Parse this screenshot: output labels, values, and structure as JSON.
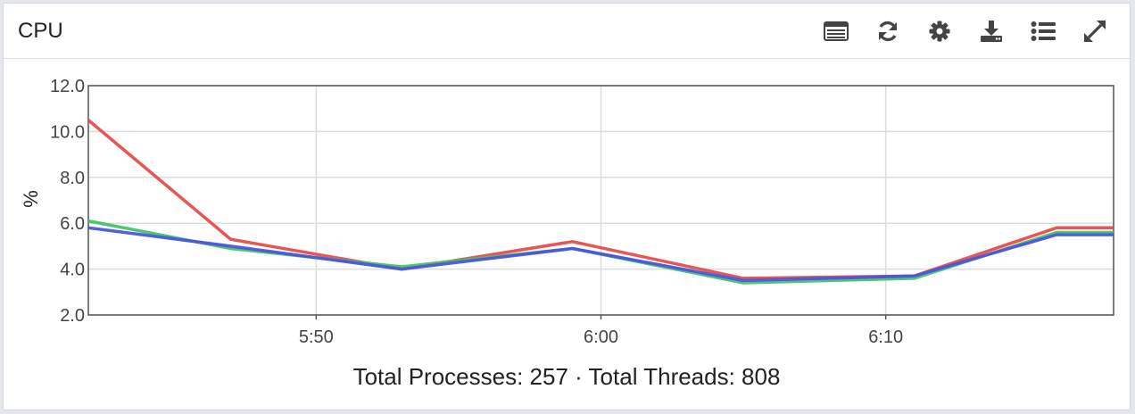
{
  "panel": {
    "title": "CPU",
    "toolbar": [
      {
        "icon": "table-icon",
        "name": "table-view-button"
      },
      {
        "icon": "refresh-icon",
        "name": "refresh-button"
      },
      {
        "icon": "gear-icon",
        "name": "settings-button"
      },
      {
        "icon": "download-icon",
        "name": "download-button"
      },
      {
        "icon": "list-icon",
        "name": "legend-button"
      },
      {
        "icon": "expand-icon",
        "name": "expand-button"
      }
    ],
    "summary": "Total Processes: 257 · Total Threads: 808"
  },
  "colors": {
    "icon": "#444444",
    "grid": "#dddddd",
    "frame": "#555555"
  },
  "chart_data": {
    "type": "line",
    "ylabel": "%",
    "xlabel": "",
    "ylim": [
      2.0,
      12.0
    ],
    "yticks": [
      "2.0",
      "4.0",
      "6.0",
      "8.0",
      "10.0",
      "12.0"
    ],
    "xlim": [
      "5:42",
      "6:18"
    ],
    "xticks": [
      {
        "label": "5:50",
        "t": "5:50"
      },
      {
        "label": "6:00",
        "t": "6:00"
      },
      {
        "label": "6:10",
        "t": "6:10"
      }
    ],
    "grid": true,
    "x": [
      "5:42",
      "5:47",
      "5:53",
      "5:59",
      "6:05",
      "6:11",
      "6:16",
      "6:18"
    ],
    "series": [
      {
        "color": "#e84c4a",
        "values": [
          10.5,
          5.3,
          4.0,
          5.2,
          3.6,
          3.7,
          5.8,
          5.8
        ]
      },
      {
        "color": "#42c463",
        "values": [
          6.1,
          4.9,
          4.1,
          4.9,
          3.4,
          3.6,
          5.6,
          5.6
        ]
      },
      {
        "color": "#4a55e0",
        "values": [
          5.8,
          5.0,
          4.0,
          4.9,
          3.5,
          3.7,
          5.5,
          5.5
        ]
      }
    ]
  }
}
